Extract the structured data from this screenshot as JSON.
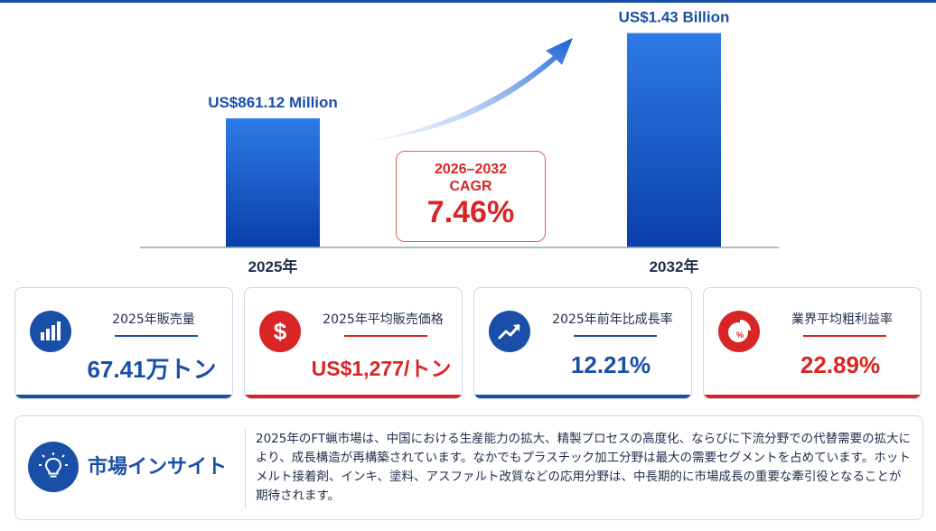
{
  "chart_data": {
    "type": "bar",
    "categories": [
      "2025年",
      "2032年"
    ],
    "values": [
      861.12,
      1430
    ],
    "value_unit": "US$ Million",
    "value_labels": [
      "US$861.12 Million",
      "US$1.43 Billion"
    ],
    "title": "",
    "xlabel": "",
    "ylabel": "",
    "ylim": [
      0,
      1530
    ],
    "grid": false,
    "legend": "none",
    "colors": {
      "bar_top": "#2e7ae6",
      "bar_bottom": "#0a3fa8",
      "axis": "#9aa3b2"
    }
  },
  "cagr": {
    "period": "2026–2032",
    "label": "CAGR",
    "value": "7.46%"
  },
  "cards": [
    {
      "label": "2025年販売量",
      "value": "67.41万トン",
      "icon": "bar-chart-icon",
      "color": "#1a4fa8"
    },
    {
      "label": "2025年平均販売価格",
      "value": "US$1,277/トン",
      "icon": "dollar-icon",
      "color": "#d92525"
    },
    {
      "label": "2025年前年比成長率",
      "value": "12.21%",
      "icon": "trend-up-icon",
      "color": "#1a4fa8"
    },
    {
      "label": "業界平均粗利益率",
      "value": "22.89%",
      "icon": "pie-percent-icon",
      "color": "#d92525"
    }
  ],
  "insight": {
    "title": "市場インサイト",
    "icon": "lightbulb-icon",
    "text": "2025年のFT蝋市場は、中国における生産能力の拡大、精製プロセスの高度化、ならびに下流分野での代替需要の拡大により、成長構造が再構築されています。なかでもプラスチック加工分野は最大の需要セグメントを占めています。ホットメルト接着剤、インキ、塗料、アスファルト改質などの応用分野は、中長期的に市場成長の重要な牽引役となることが期待されます。"
  }
}
